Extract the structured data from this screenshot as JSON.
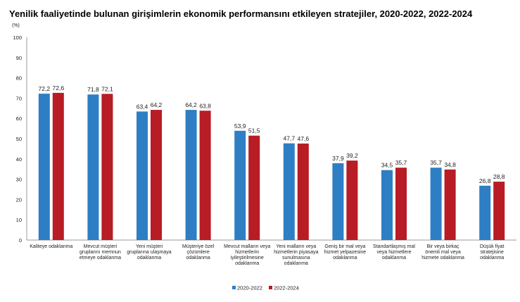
{
  "chart_data": {
    "type": "bar",
    "title": "Yenilik faaliyetinde bulunan girişimlerin ekonomik performansını etkileyen stratejiler, 2020-2022, 2022-2024",
    "ylabel": "(%)",
    "ylim": [
      0,
      100
    ],
    "yticks": [
      0,
      10,
      20,
      30,
      40,
      50,
      60,
      70,
      80,
      90,
      100
    ],
    "grid": false,
    "legend": "bottom",
    "categories": [
      "Kaliteye odaklanma",
      "Mevcut müşteri gruplarını memnun etmeye odaklanma",
      "Yeni müşteri gruplarına ulaşmaya odaklanma",
      "Müşteriye özel çözümlere odaklanma",
      "Mevcut malların veya hizmetlerin iyileştirilmesine odaklanma",
      "Yeni malların veya hizmetlerin piyasaya sunulmasına odaklanma",
      "Geniş bir mal veya hizmet yelpazesine odaklanma",
      "Standartlaşmış mal veya hizmetlere odaklanma",
      "Bir veya birkaç önemli mal veya hizmete odaklanma",
      "Düşük fiyat stratejisine odaklanma"
    ],
    "category_lines": [
      [
        "Kaliteye odaklanma"
      ],
      [
        "Mevcut müşteri",
        "gruplarını memnun",
        "etmeye odaklanma"
      ],
      [
        "Yeni müşteri",
        "gruplarına ulaşmaya",
        "odaklanma"
      ],
      [
        "Müşteriye özel",
        "çözümlere",
        "odaklanma"
      ],
      [
        "Mevcut malların veya",
        "hizmetlerin",
        "iyileştirilmesine",
        "odaklanma"
      ],
      [
        "Yeni malların veya",
        "hizmetlerin piyasaya",
        "sunulmasına",
        "odaklanma"
      ],
      [
        "Geniş bir mal veya",
        "hizmet yelpazesine",
        "odaklanma"
      ],
      [
        "Standartlaşmış mal",
        "veya  hizmetlere",
        "odaklanma"
      ],
      [
        "Bir veya birkaç",
        "önemli mal veya",
        "hizmete odaklanma"
      ],
      [
        "Düşük fiyat",
        "stratejisine",
        "odaklanma"
      ]
    ],
    "series": [
      {
        "name": "2020-2022",
        "color": "#2e7ec4",
        "values": [
          72.2,
          71.8,
          63.4,
          64.2,
          53.9,
          47.7,
          37.9,
          34.5,
          35.7,
          26.8
        ],
        "labels": [
          "72,2",
          "71,8",
          "63,4",
          "64,2",
          "53,9",
          "47,7",
          "37,9",
          "34,5",
          "35,7",
          "26,8"
        ]
      },
      {
        "name": "2022-2024",
        "color": "#b81c24",
        "values": [
          72.6,
          72.1,
          64.2,
          63.8,
          51.5,
          47.6,
          39.2,
          35.7,
          34.8,
          28.8
        ],
        "labels": [
          "72,6",
          "72,1",
          "64,2",
          "63,8",
          "51,5",
          "47,6",
          "39,2",
          "35,7",
          "34,8",
          "28,8"
        ]
      }
    ]
  }
}
